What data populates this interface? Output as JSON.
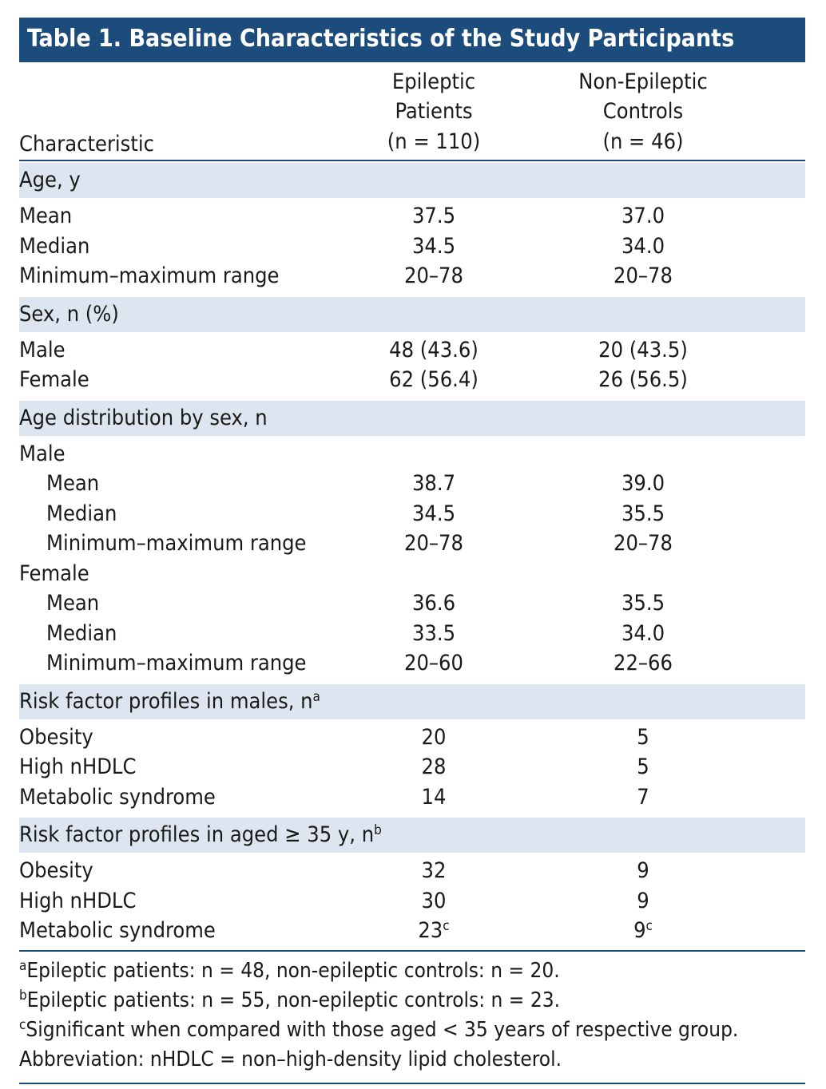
{
  "title": "Table 1. Baseline Characteristics of the Study Participants",
  "header": {
    "characteristic": "Characteristic",
    "columns": [
      [
        "Epileptic Patients",
        "(n = 110)"
      ],
      [
        "Non-Epileptic",
        "Controls",
        "(n = 46)"
      ]
    ]
  },
  "sections": [
    {
      "label": "Age, y",
      "rows": [
        {
          "label": "Mean",
          "values": [
            "37.5",
            "37.0"
          ]
        },
        {
          "label": "Median",
          "values": [
            "34.5",
            "34.0"
          ]
        },
        {
          "label": "Minimum–maximum range",
          "values": [
            "20–78",
            "20–78"
          ]
        }
      ]
    },
    {
      "label": "Sex, n (%)",
      "rows": [
        {
          "label": "Male",
          "values": [
            "48 (43.6)",
            "20 (43.5)"
          ]
        },
        {
          "label": "Female",
          "values": [
            "62 (56.4)",
            "26 (56.5)"
          ]
        }
      ]
    },
    {
      "label": "Age distribution by sex, n",
      "groups": [
        {
          "label": "Male",
          "rows": [
            {
              "label": "Mean",
              "values": [
                "38.7",
                "39.0"
              ]
            },
            {
              "label": "Median",
              "values": [
                "34.5",
                "35.5"
              ]
            },
            {
              "label": "Minimum–maximum range",
              "values": [
                "20–78",
                "20–78"
              ]
            }
          ]
        },
        {
          "label": "Female",
          "rows": [
            {
              "label": "Mean",
              "values": [
                "36.6",
                "35.5"
              ]
            },
            {
              "label": "Median",
              "values": [
                "33.5",
                "34.0"
              ]
            },
            {
              "label": "Minimum–maximum range",
              "values": [
                "20–60",
                "22–66"
              ]
            }
          ]
        }
      ]
    },
    {
      "label": "Risk factor profiles in males, n",
      "sup": "a",
      "rows": [
        {
          "label": "Obesity",
          "values": [
            "20",
            "5"
          ]
        },
        {
          "label": "High nHDLC",
          "values": [
            "28",
            "5"
          ]
        },
        {
          "label": "Metabolic syndrome",
          "values": [
            "14",
            "7"
          ]
        }
      ]
    },
    {
      "label": "Risk factor profiles in aged ≥ 35 y,  n",
      "sup": "b",
      "rows": [
        {
          "label": "Obesity",
          "values": [
            "32",
            "9"
          ]
        },
        {
          "label": "High nHDLC",
          "values": [
            "30",
            "9"
          ]
        },
        {
          "label": "Metabolic syndrome",
          "values": [
            {
              "text": "23",
              "sup": "c"
            },
            {
              "text": "9",
              "sup": "c"
            }
          ]
        }
      ]
    }
  ],
  "footnotes": [
    {
      "sup": "a",
      "text": "Epileptic patients: n = 48, non-epileptic controls: n = 20."
    },
    {
      "sup": "b",
      "text": "Epileptic patients: n = 55, non-epileptic controls: n = 23."
    },
    {
      "sup": "c",
      "text": "Significant when compared with those aged < 35 years of respective group."
    },
    {
      "text": "Abbreviation: nHDLC = non–high-density lipid cholesterol."
    }
  ]
}
